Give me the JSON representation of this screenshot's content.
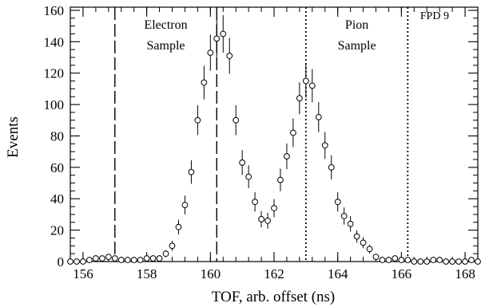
{
  "chart_data": {
    "type": "scatter",
    "title": "",
    "xlabel": "TOF, arb. offset (ns)",
    "ylabel": "Events",
    "xlim": [
      155.6,
      168.4
    ],
    "ylim": [
      0,
      162
    ],
    "x_ticks": [
      156,
      158,
      160,
      162,
      164,
      166,
      168
    ],
    "y_ticks": [
      0,
      20,
      40,
      60,
      80,
      100,
      120,
      140,
      160
    ],
    "grid": false,
    "legend": "none",
    "corner_label": "FPD 9",
    "regions": [
      {
        "label_lines": [
          "Electron",
          "Sample"
        ],
        "x_min": 157.0,
        "x_max": 160.2,
        "line_style": "dashed"
      },
      {
        "label_lines": [
          "Pion",
          "Sample"
        ],
        "x_min": 163.0,
        "x_max": 166.2,
        "line_style": "dotted"
      }
    ],
    "series": [
      {
        "marker": "open-circle",
        "x": [
          155.6,
          155.8,
          156.0,
          156.2,
          156.4,
          156.6,
          156.8,
          157.0,
          157.2,
          157.4,
          157.6,
          157.8,
          158.0,
          158.2,
          158.4,
          158.6,
          158.8,
          159.0,
          159.2,
          159.4,
          159.6,
          159.8,
          160.0,
          160.2,
          160.4,
          160.6,
          160.8,
          161.0,
          161.2,
          161.4,
          161.6,
          161.8,
          162.0,
          162.2,
          162.4,
          162.6,
          162.8,
          163.0,
          163.2,
          163.4,
          163.6,
          163.8,
          164.0,
          164.2,
          164.4,
          164.6,
          164.8,
          165.0,
          165.2,
          165.4,
          165.6,
          165.8,
          166.0,
          166.2,
          166.4,
          166.6,
          166.8,
          167.0,
          167.2,
          167.4,
          167.6,
          167.8,
          168.0,
          168.2,
          168.4
        ],
        "y": [
          0,
          0,
          0,
          1,
          2,
          2,
          3,
          2,
          1,
          1,
          1,
          1,
          2,
          2,
          2,
          5,
          10,
          22,
          36,
          57,
          90,
          114,
          133,
          142,
          145,
          131,
          90,
          63,
          54,
          38,
          27,
          26,
          34,
          52,
          67,
          82,
          104,
          115,
          112,
          92,
          74,
          60,
          38,
          29,
          24,
          16,
          12,
          8,
          3,
          1,
          1,
          2,
          1,
          1,
          0,
          0,
          0,
          1,
          1,
          0,
          0,
          0,
          0,
          1,
          0
        ],
        "err": [
          1,
          1,
          1,
          1,
          1.4,
          1.4,
          1.7,
          1.4,
          1,
          1,
          1,
          1,
          1.4,
          1.4,
          1.4,
          2.2,
          3.2,
          4.7,
          6,
          7.5,
          9.5,
          10.7,
          11.5,
          11.9,
          12,
          11.4,
          9.5,
          7.9,
          7.3,
          6.2,
          5.2,
          5.1,
          5.8,
          7.2,
          8.2,
          9.1,
          10.2,
          10.7,
          10.6,
          9.6,
          8.6,
          7.7,
          6.2,
          5.4,
          4.9,
          4,
          3.5,
          2.8,
          1.7,
          1,
          1,
          1.4,
          1,
          1,
          1,
          1,
          1,
          1,
          1,
          1,
          1,
          1,
          1,
          1,
          1
        ]
      }
    ]
  }
}
